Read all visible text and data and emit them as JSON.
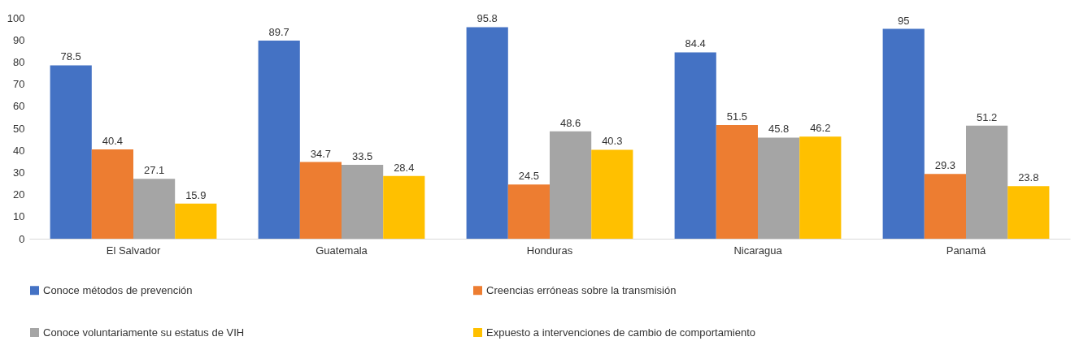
{
  "chart_data": {
    "type": "bar",
    "categories": [
      "El Salvador",
      "Guatemala",
      "Honduras",
      "Nicaragua",
      "Panamá"
    ],
    "series": [
      {
        "name": "Conoce métodos de prevención",
        "color": "#4472c4",
        "values": [
          78.5,
          89.7,
          95.8,
          84.4,
          95
        ]
      },
      {
        "name": "Creencias erróneas sobre la transmisión",
        "color": "#ed7d31",
        "values": [
          40.4,
          34.7,
          24.5,
          51.5,
          29.3
        ]
      },
      {
        "name": "Conoce voluntariamente su estatus de VIH",
        "color": "#a5a5a5",
        "values": [
          27.1,
          33.5,
          48.6,
          45.8,
          51.2
        ]
      },
      {
        "name": "Expuesto a intervenciones de cambio de comportamiento",
        "color": "#ffc000",
        "values": [
          15.9,
          28.4,
          40.3,
          46.2,
          23.8
        ]
      }
    ],
    "ylim": [
      0,
      100
    ],
    "yticks": [
      0,
      10,
      20,
      30,
      40,
      50,
      60,
      70,
      80,
      90,
      100
    ],
    "data_labels": true,
    "legend": "bottom"
  }
}
